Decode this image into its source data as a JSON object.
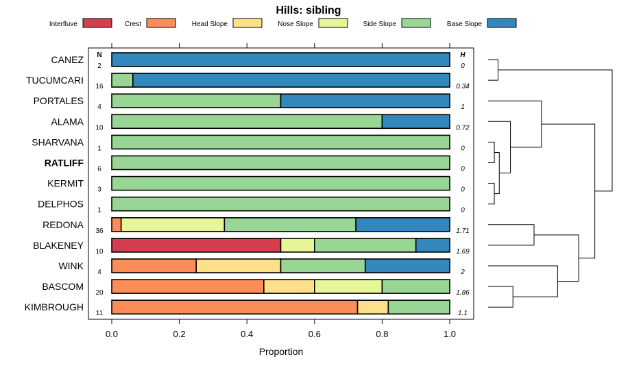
{
  "chart_data": {
    "type": "bar",
    "stacked": true,
    "orientation": "horizontal",
    "title": "Hills: sibling",
    "xlabel": "Proportion",
    "ylabel": "",
    "xlim": [
      0,
      1
    ],
    "x_ticks": [
      "0.0",
      "0.2",
      "0.4",
      "0.6",
      "0.8",
      "1.0"
    ],
    "x_tick_values": [
      0,
      0.2,
      0.4,
      0.6,
      0.8,
      1.0
    ],
    "n_header": "N",
    "h_header": "H",
    "highlight": "RATLIFF",
    "legend": [
      {
        "name": "Interfluve",
        "color": "#D53E4F"
      },
      {
        "name": "Crest",
        "color": "#FC8D59"
      },
      {
        "name": "Head Slope",
        "color": "#FEE08B"
      },
      {
        "name": "Nose Slope",
        "color": "#E6F598"
      },
      {
        "name": "Side Slope",
        "color": "#99D594"
      },
      {
        "name": "Base Slope",
        "color": "#3288BD"
      }
    ],
    "rows": [
      {
        "name": "CANEZ",
        "n": "2",
        "h": "0",
        "values": [
          0,
          0,
          0,
          0,
          0,
          1.0
        ]
      },
      {
        "name": "TUCUMCARI",
        "n": "16",
        "h": "0.34",
        "values": [
          0,
          0,
          0,
          0,
          0.0625,
          0.9375
        ]
      },
      {
        "name": "PORTALES",
        "n": "4",
        "h": "1",
        "values": [
          0,
          0,
          0,
          0,
          0.5,
          0.5
        ]
      },
      {
        "name": "ALAMA",
        "n": "10",
        "h": "0.72",
        "values": [
          0,
          0,
          0,
          0,
          0.8,
          0.2
        ]
      },
      {
        "name": "SHARVANA",
        "n": "1",
        "h": "0",
        "values": [
          0,
          0,
          0,
          0,
          1.0,
          0
        ]
      },
      {
        "name": "RATLIFF",
        "n": "6",
        "h": "0",
        "values": [
          0,
          0,
          0,
          0,
          1.0,
          0
        ]
      },
      {
        "name": "KERMIT",
        "n": "3",
        "h": "0",
        "values": [
          0,
          0,
          0,
          0,
          1.0,
          0
        ]
      },
      {
        "name": "DELPHOS",
        "n": "1",
        "h": "0",
        "values": [
          0,
          0,
          0,
          0,
          1.0,
          0
        ]
      },
      {
        "name": "REDONA",
        "n": "36",
        "h": "1.71",
        "values": [
          0,
          0.0278,
          0,
          0.3056,
          0.3889,
          0.2778
        ]
      },
      {
        "name": "BLAKENEY",
        "n": "10",
        "h": "1.69",
        "values": [
          0.5,
          0,
          0,
          0.1,
          0.3,
          0.1
        ]
      },
      {
        "name": "WINK",
        "n": "4",
        "h": "2",
        "values": [
          0,
          0.25,
          0.25,
          0,
          0.25,
          0.25
        ]
      },
      {
        "name": "BASCOM",
        "n": "20",
        "h": "1.86",
        "values": [
          0,
          0.45,
          0.15,
          0.2,
          0.2,
          0
        ]
      },
      {
        "name": "KIMBROUGH",
        "n": "11",
        "h": "1.1",
        "values": [
          0,
          0.7273,
          0.0909,
          0,
          0.1818,
          0
        ]
      }
    ],
    "dendrogram": {
      "type": "hierarchical-clustering",
      "merges": [
        {
          "id": "m1",
          "a": "CANEZ",
          "b": "TUCUMCARI",
          "height": 0.08
        },
        {
          "id": "m2",
          "a": "SHARVANA",
          "b": "RATLIFF",
          "height": 0.05
        },
        {
          "id": "m3",
          "a": "KERMIT",
          "b": "DELPHOS",
          "height": 0.05
        },
        {
          "id": "m4",
          "a": "m2",
          "b": "m3",
          "height": 0.09
        },
        {
          "id": "m5",
          "a": "ALAMA",
          "b": "m4",
          "height": 0.18
        },
        {
          "id": "m6",
          "a": "PORTALES",
          "b": "m5",
          "height": 0.43
        },
        {
          "id": "m7",
          "a": "BASCOM",
          "b": "KIMBROUGH",
          "height": 0.2
        },
        {
          "id": "m8",
          "a": "REDONA",
          "b": "BLAKENEY",
          "height": 0.37
        },
        {
          "id": "m9",
          "a": "WINK",
          "b": "m7",
          "height": 0.56
        },
        {
          "id": "m10",
          "a": "m8",
          "b": "m9",
          "height": 0.73
        },
        {
          "id": "m11",
          "a": "m6",
          "b": "m10",
          "height": 0.86
        },
        {
          "id": "m12",
          "a": "m1",
          "b": "m11",
          "height": 1.0
        }
      ]
    }
  }
}
